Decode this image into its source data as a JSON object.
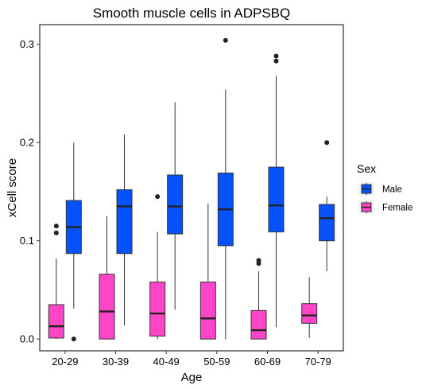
{
  "chart_data": {
    "type": "boxplot",
    "title": "Smooth muscle cells in ADPSBQ",
    "xlabel": "Age",
    "ylabel": "xCell score",
    "categories": [
      "20-29",
      "30-39",
      "40-49",
      "50-59",
      "60-69",
      "70-79"
    ],
    "ylim": [
      -0.012,
      0.32
    ],
    "yticks": [
      0.0,
      0.1,
      0.2,
      0.3
    ],
    "ytick_labels": [
      "0.0",
      "0.1",
      "0.2",
      "0.3"
    ],
    "grid": false,
    "legend": {
      "title": "Sex",
      "position": "right"
    },
    "series": [
      {
        "name": "Male",
        "color": "#0652FF",
        "boxes": [
          {
            "whisker_low": 0.031,
            "q1": 0.087,
            "median": 0.114,
            "q3": 0.141,
            "whisker_high": 0.2,
            "outliers": [
              0.0
            ]
          },
          {
            "whisker_low": 0.014,
            "q1": 0.087,
            "median": 0.135,
            "q3": 0.152,
            "whisker_high": 0.208,
            "outliers": []
          },
          {
            "whisker_low": 0.03,
            "q1": 0.107,
            "median": 0.135,
            "q3": 0.167,
            "whisker_high": 0.241,
            "outliers": []
          },
          {
            "whisker_low": 0.0,
            "q1": 0.095,
            "median": 0.132,
            "q3": 0.169,
            "whisker_high": 0.254,
            "outliers": [
              0.304
            ]
          },
          {
            "whisker_low": 0.012,
            "q1": 0.109,
            "median": 0.136,
            "q3": 0.175,
            "whisker_high": 0.268,
            "outliers": [
              0.283,
              0.288
            ]
          },
          {
            "whisker_low": 0.069,
            "q1": 0.1,
            "median": 0.123,
            "q3": 0.137,
            "whisker_high": 0.145,
            "outliers": [
              0.2
            ]
          }
        ]
      },
      {
        "name": "Female",
        "color": "#FF45C7",
        "boxes": [
          {
            "whisker_low": 0.0,
            "q1": 0.001,
            "median": 0.013,
            "q3": 0.035,
            "whisker_high": 0.082,
            "outliers": [
              0.108,
              0.115
            ]
          },
          {
            "whisker_low": 0.0,
            "q1": 0.0,
            "median": 0.028,
            "q3": 0.066,
            "whisker_high": 0.125,
            "outliers": []
          },
          {
            "whisker_low": 0.0,
            "q1": 0.003,
            "median": 0.026,
            "q3": 0.058,
            "whisker_high": 0.109,
            "outliers": [
              0.145
            ]
          },
          {
            "whisker_low": 0.0,
            "q1": 0.0,
            "median": 0.021,
            "q3": 0.058,
            "whisker_high": 0.138,
            "outliers": []
          },
          {
            "whisker_low": 0.0,
            "q1": 0.0,
            "median": 0.009,
            "q3": 0.029,
            "whisker_high": 0.069,
            "outliers": [
              0.077,
              0.08
            ]
          },
          {
            "whisker_low": 0.001,
            "q1": 0.016,
            "median": 0.024,
            "q3": 0.036,
            "whisker_high": 0.063,
            "outliers": []
          }
        ]
      }
    ]
  }
}
